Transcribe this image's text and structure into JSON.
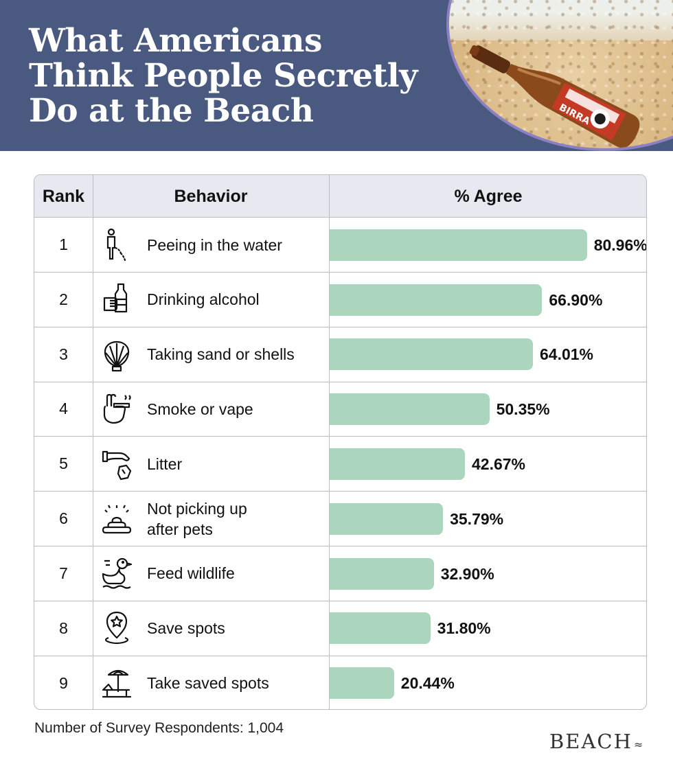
{
  "header": {
    "title_lines": [
      "What Americans",
      "Think People Secretly",
      "Do at the Beach"
    ],
    "photo_label": "BIRRA"
  },
  "table": {
    "columns": {
      "rank": "Rank",
      "behavior": "Behavior",
      "agree": "% Agree"
    }
  },
  "chart_data": {
    "type": "bar",
    "title": "What Americans Think People Secretly Do at the Beach",
    "xlabel": "Behavior",
    "ylabel": "% Agree",
    "ylim": [
      0,
      100
    ],
    "rows": [
      {
        "rank": "1",
        "label": "Peeing in the water",
        "value": 80.96,
        "value_label": "80.96%",
        "icon": "peeing-person-icon"
      },
      {
        "rank": "2",
        "label": "Drinking alcohol",
        "value": 66.9,
        "value_label": "66.90%",
        "icon": "hand-holding-bottle-icon"
      },
      {
        "rank": "3",
        "label": "Taking sand or shells",
        "value": 64.01,
        "value_label": "64.01%",
        "icon": "seashell-icon"
      },
      {
        "rank": "4",
        "label": "Smoke or vape",
        "value": 50.35,
        "value_label": "50.35%",
        "icon": "hand-cigarette-icon"
      },
      {
        "rank": "5",
        "label": "Litter",
        "value": 42.67,
        "value_label": "42.67%",
        "icon": "hand-dropping-trash-icon"
      },
      {
        "rank": "6",
        "label": "Not picking up\nafter pets",
        "value": 35.79,
        "value_label": "35.79%",
        "icon": "pet-waste-icon"
      },
      {
        "rank": "7",
        "label": "Feed wildlife",
        "value": 32.9,
        "value_label": "32.90%",
        "icon": "duck-icon"
      },
      {
        "rank": "8",
        "label": "Save spots",
        "value": 31.8,
        "value_label": "31.80%",
        "icon": "location-pin-icon"
      },
      {
        "rank": "9",
        "label": "Take saved spots",
        "value": 20.44,
        "value_label": "20.44%",
        "icon": "beach-chair-umbrella-icon"
      }
    ]
  },
  "footer": {
    "note": "Number of Survey Respondents: 1,004",
    "logo": "BEACH",
    "logo_mark": "≈"
  },
  "colors": {
    "header_bg": "#4a5980",
    "bar": "#acd5bd",
    "table_header_bg": "#e6e9f0",
    "border": "#b9bcc3",
    "photo_ring": "#8c80c4"
  }
}
